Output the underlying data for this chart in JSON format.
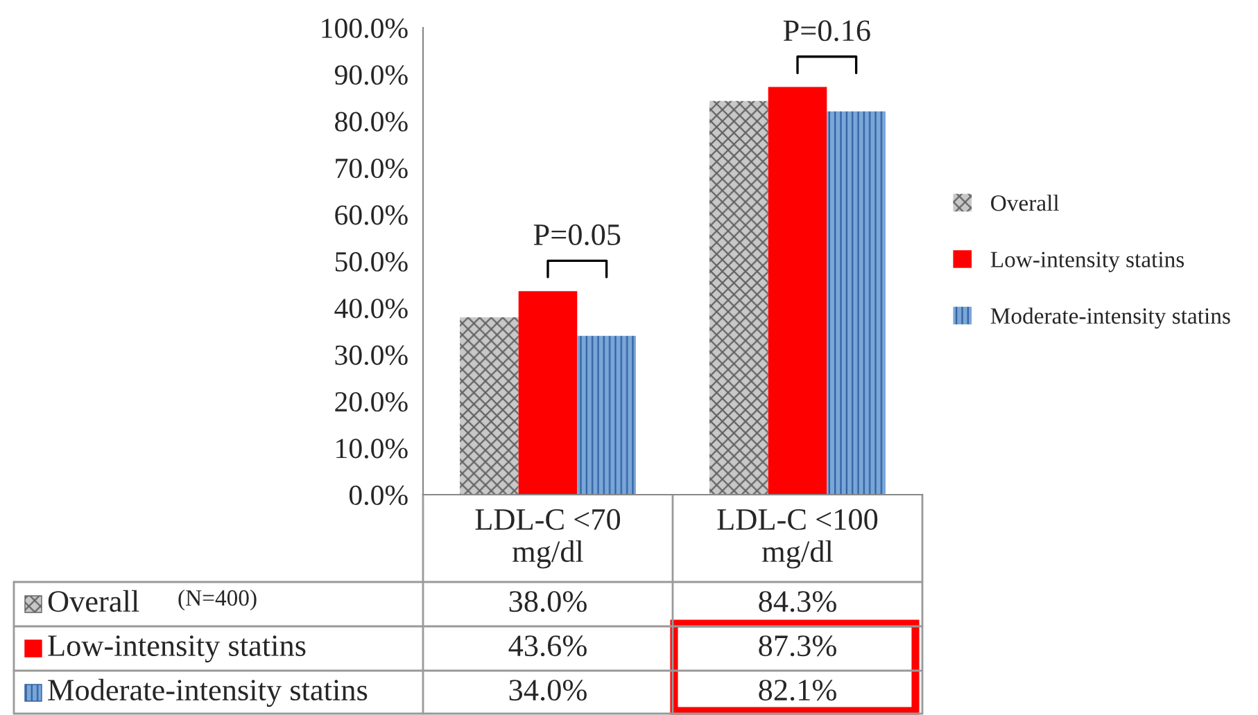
{
  "chart_data": {
    "type": "bar",
    "categories": [
      "LDL-C <70\nmg/dl",
      "LDL-C <100\nmg/dl"
    ],
    "series": [
      {
        "name": "Overall",
        "color": "#c8c8c8",
        "values": [
          38.0,
          84.3
        ],
        "value_labels": [
          "38.0%",
          "84.3%"
        ]
      },
      {
        "name": "Low-intensity statins",
        "color": "#ff0000",
        "values": [
          43.6,
          87.3
        ],
        "value_labels": [
          "43.6%",
          "87.3%"
        ]
      },
      {
        "name": "Moderate-intensity statins",
        "color": "#7aa6d8",
        "values": [
          34.0,
          82.1
        ],
        "value_labels": [
          "34.0%",
          "82.1%"
        ]
      }
    ],
    "ylim": [
      0,
      100
    ],
    "yticks": [
      {
        "value": 0,
        "label": "0.0%"
      },
      {
        "value": 10,
        "label": "10.0%"
      },
      {
        "value": 20,
        "label": "20.0%"
      },
      {
        "value": 30,
        "label": "30.0%"
      },
      {
        "value": 40,
        "label": "40.0%"
      },
      {
        "value": 50,
        "label": "50.0%"
      },
      {
        "value": 60,
        "label": "60.0%"
      },
      {
        "value": 70,
        "label": "70.0%"
      },
      {
        "value": 80,
        "label": "80.0%"
      },
      {
        "value": 90,
        "label": "90.0%"
      },
      {
        "value": 100,
        "label": "100.0%"
      }
    ],
    "annotations": [
      "P=0.05",
      "P=0.16",
      "(N=400)"
    ],
    "legend": "right",
    "grid": false
  }
}
